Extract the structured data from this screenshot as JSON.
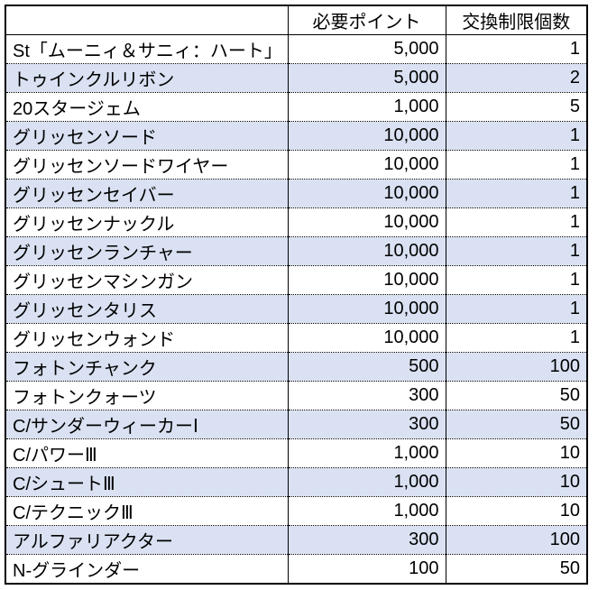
{
  "table": {
    "banded_row_color": "#d9e1f2",
    "headers": {
      "item": "",
      "points": "必要ポイント",
      "limit": "交換制限個数"
    },
    "rows": [
      {
        "name": "St「ムーニィ＆サニィ：ハート」",
        "points": "5,000",
        "limit": "1",
        "highlight": false
      },
      {
        "name": "トゥインクルリボン",
        "points": "5,000",
        "limit": "2",
        "highlight": true
      },
      {
        "name": "20スタージェム",
        "points": "1,000",
        "limit": "5",
        "highlight": false
      },
      {
        "name": "グリッセンソード",
        "points": "10,000",
        "limit": "1",
        "highlight": true
      },
      {
        "name": "グリッセンソードワイヤー",
        "points": "10,000",
        "limit": "1",
        "highlight": false
      },
      {
        "name": "グリッセンセイバー",
        "points": "10,000",
        "limit": "1",
        "highlight": true
      },
      {
        "name": "グリッセンナックル",
        "points": "10,000",
        "limit": "1",
        "highlight": false
      },
      {
        "name": "グリッセンランチャー",
        "points": "10,000",
        "limit": "1",
        "highlight": true
      },
      {
        "name": "グリッセンマシンガン",
        "points": "10,000",
        "limit": "1",
        "highlight": false
      },
      {
        "name": "グリッセンタリス",
        "points": "10,000",
        "limit": "1",
        "highlight": true
      },
      {
        "name": "グリッセンウォンド",
        "points": "10,000",
        "limit": "1",
        "highlight": false
      },
      {
        "name": "フォトンチャンク",
        "points": "500",
        "limit": "100",
        "highlight": true
      },
      {
        "name": "フォトンクォーツ",
        "points": "300",
        "limit": "50",
        "highlight": false
      },
      {
        "name": "C/サンダーウィーカーⅠ",
        "points": "300",
        "limit": "50",
        "highlight": true
      },
      {
        "name": "C/パワーⅢ",
        "points": "1,000",
        "limit": "10",
        "highlight": false
      },
      {
        "name": "C/シュートⅢ",
        "points": "1,000",
        "limit": "10",
        "highlight": true
      },
      {
        "name": "C/テクニックⅢ",
        "points": "1,000",
        "limit": "10",
        "highlight": false
      },
      {
        "name": "アルファリアクター",
        "points": "300",
        "limit": "100",
        "highlight": true
      },
      {
        "name": "N-グラインダー",
        "points": "100",
        "limit": "50",
        "highlight": false
      }
    ]
  }
}
